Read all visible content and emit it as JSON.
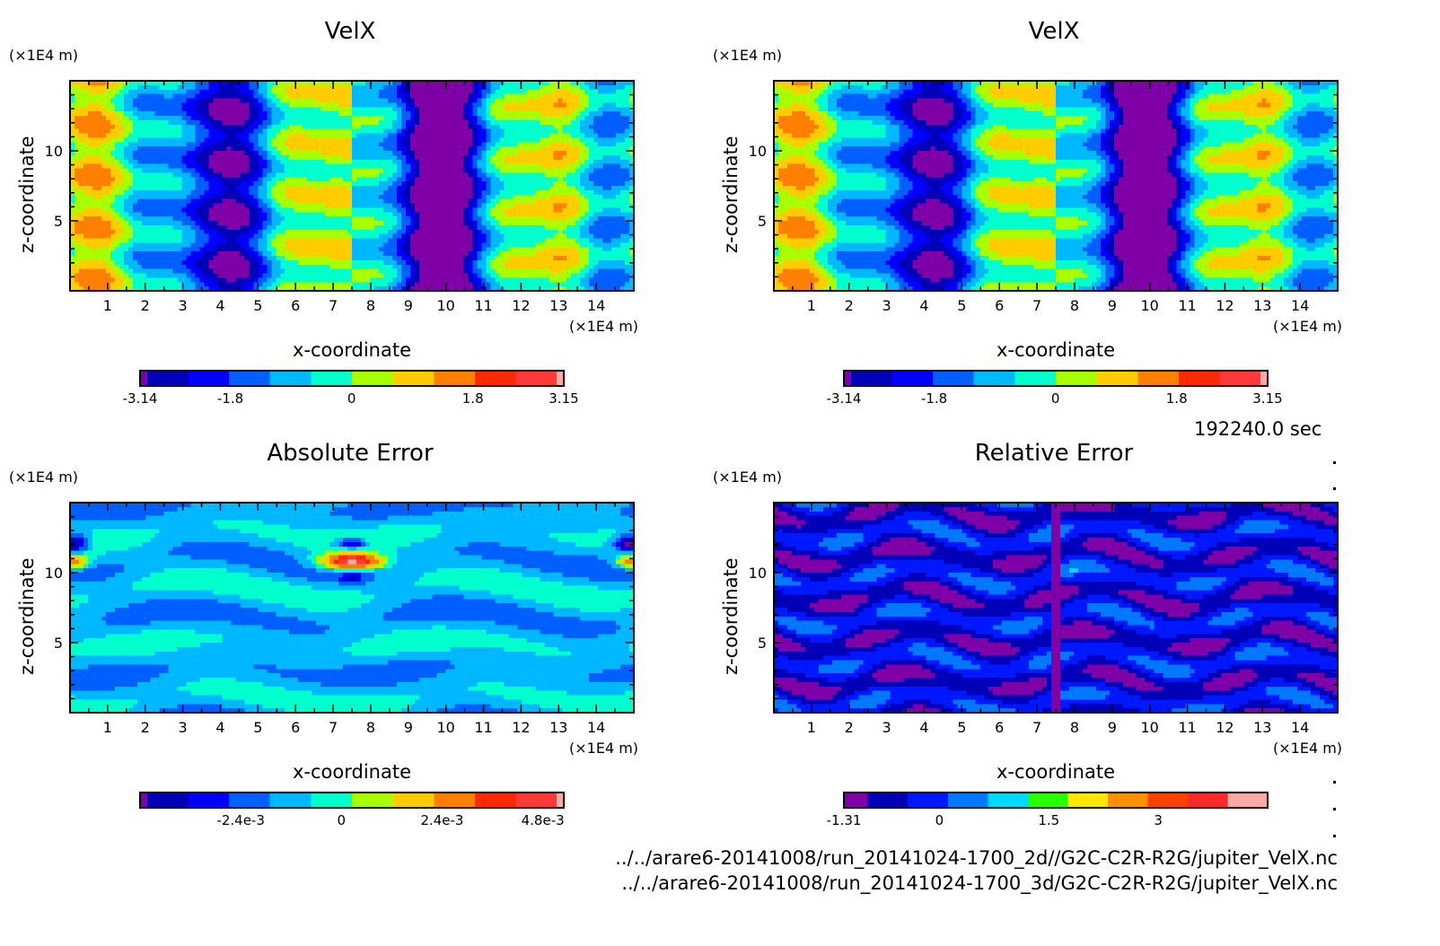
{
  "chart_data": [
    {
      "type": "heatmap",
      "title": "VelX",
      "xlabel": "x-coordinate",
      "ylabel": "z-coordinate",
      "x_unit": "(×1E4 m)",
      "y_unit": "(×1E4 m)",
      "xlim": [
        0,
        15
      ],
      "ylim": [
        0,
        15
      ],
      "x_ticks": [
        "1",
        "2",
        "3",
        "4",
        "5",
        "6",
        "7",
        "8",
        "9",
        "10",
        "11",
        "12",
        "13",
        "14"
      ],
      "y_ticks": [
        "5",
        "10"
      ],
      "colorbar": {
        "colors": [
          "#8000a8",
          "#0000b8",
          "#0000ff",
          "#0060ff",
          "#00b8ff",
          "#00ffcc",
          "#a8ff00",
          "#ffcc00",
          "#ff8000",
          "#ff2800",
          "#ff3838",
          "#ffa8a8"
        ],
        "tick_labels": [
          "-3.14",
          "-1.8",
          "0",
          "1.8",
          "3.15"
        ],
        "range": [
          -3.14,
          3.15
        ]
      },
      "field": "velx"
    },
    {
      "type": "heatmap",
      "title": "VelX",
      "xlabel": "x-coordinate",
      "ylabel": "z-coordinate",
      "x_unit": "(×1E4 m)",
      "y_unit": "(×1E4 m)",
      "xlim": [
        0,
        15
      ],
      "ylim": [
        0,
        15
      ],
      "x_ticks": [
        "1",
        "2",
        "3",
        "4",
        "5",
        "6",
        "7",
        "8",
        "9",
        "10",
        "11",
        "12",
        "13",
        "14"
      ],
      "y_ticks": [
        "5",
        "10"
      ],
      "colorbar": {
        "colors": [
          "#8000a8",
          "#0000b8",
          "#0000ff",
          "#0060ff",
          "#00b8ff",
          "#00ffcc",
          "#a8ff00",
          "#ffcc00",
          "#ff8000",
          "#ff2800",
          "#ff3838",
          "#ffa8a8"
        ],
        "tick_labels": [
          "-3.14",
          "-1.8",
          "0",
          "1.8",
          "3.15"
        ],
        "range": [
          -3.14,
          3.15
        ]
      },
      "field": "velx"
    },
    {
      "type": "heatmap",
      "title": "Absolute Error",
      "xlabel": "x-coordinate",
      "ylabel": "z-coordinate",
      "x_unit": "(×1E4 m)",
      "y_unit": "(×1E4 m)",
      "xlim": [
        0,
        15
      ],
      "ylim": [
        0,
        15
      ],
      "x_ticks": [
        "1",
        "2",
        "3",
        "4",
        "5",
        "6",
        "7",
        "8",
        "9",
        "10",
        "11",
        "12",
        "13",
        "14"
      ],
      "y_ticks": [
        "5",
        "10"
      ],
      "colorbar": {
        "colors": [
          "#8000a8",
          "#0000b8",
          "#0000ff",
          "#0060ff",
          "#00b8ff",
          "#00ffcc",
          "#a8ff00",
          "#ffcc00",
          "#ff8000",
          "#ff2800",
          "#ff3838",
          "#ffa8a8"
        ],
        "tick_labels": [
          "-2.4e-3",
          "0",
          "2.4e-3",
          "4.8e-3"
        ],
        "range": [
          -0.0048,
          0.0053
        ]
      },
      "field": "abserr"
    },
    {
      "type": "heatmap",
      "title": "Relative Error",
      "xlabel": "x-coordinate",
      "ylabel": "z-coordinate",
      "x_unit": "(×1E4 m)",
      "y_unit": "(×1E4 m)",
      "xlim": [
        0,
        15
      ],
      "ylim": [
        0,
        15
      ],
      "x_ticks": [
        "1",
        "2",
        "3",
        "4",
        "5",
        "6",
        "7",
        "8",
        "9",
        "10",
        "11",
        "12",
        "13",
        "14"
      ],
      "y_ticks": [
        "5",
        "10"
      ],
      "colorbar": {
        "colors": [
          "#8000a8",
          "#0000b8",
          "#0018ff",
          "#0078ff",
          "#00d8ff",
          "#28ff00",
          "#ffe800",
          "#ff9000",
          "#ff4000",
          "#ff2828",
          "#ffa8a8"
        ],
        "tick_labels": [
          "-1.31",
          "0",
          "1.5",
          "3"
        ],
        "range": [
          -1.31,
          4.5
        ]
      },
      "field": "relerr"
    }
  ],
  "info": {
    "time": "192240.0 sec",
    "file1": "../../arare6-20141008/run_20141024-1700_2d//G2C-C2R-R2G/jupiter_VelX.nc",
    "file2": "../../arare6-20141008/run_20141024-1700_3d/G2C-C2R-R2G/jupiter_VelX.nc"
  }
}
